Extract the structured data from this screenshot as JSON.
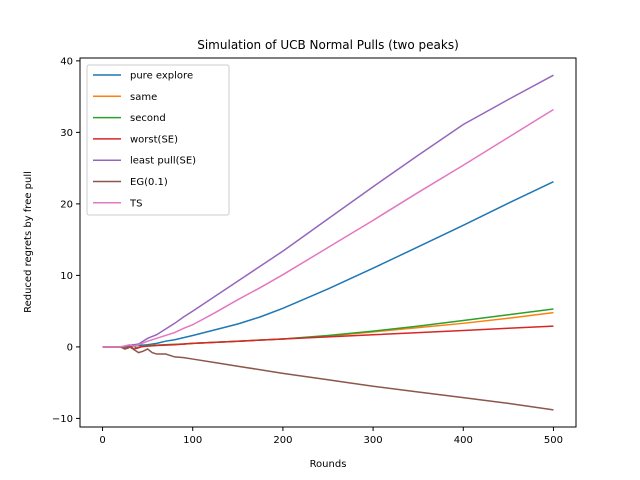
{
  "chart_data": {
    "type": "line",
    "title": "Simulation of UCB Normal Pulls (two peaks)",
    "xlabel": "Rounds",
    "ylabel": "Reduced regrets by free pull",
    "xlim": [
      -25,
      525
    ],
    "ylim": [
      -11.2,
      40.4
    ],
    "xticks": [
      0,
      100,
      200,
      300,
      400,
      500
    ],
    "yticks": [
      -10,
      0,
      10,
      20,
      30,
      40
    ],
    "grid": false,
    "legend": "upper-left",
    "series": [
      {
        "name": "pure explore",
        "color": "#1f77b4",
        "points": [
          [
            0,
            0
          ],
          [
            20,
            0
          ],
          [
            30,
            0.1
          ],
          [
            40,
            0.2
          ],
          [
            50,
            0.3
          ],
          [
            60,
            0.5
          ],
          [
            70,
            0.8
          ],
          [
            80,
            1.0
          ],
          [
            90,
            1.3
          ],
          [
            100,
            1.6
          ],
          [
            125,
            2.4
          ],
          [
            150,
            3.2
          ],
          [
            175,
            4.2
          ],
          [
            200,
            5.4
          ],
          [
            250,
            8.1
          ],
          [
            300,
            11.0
          ],
          [
            350,
            14.0
          ],
          [
            400,
            17.0
          ],
          [
            450,
            20.1
          ],
          [
            500,
            23.1
          ]
        ]
      },
      {
        "name": "same",
        "color": "#ff7f0e",
        "points": [
          [
            0,
            0
          ],
          [
            20,
            0
          ],
          [
            28,
            -0.2
          ],
          [
            33,
            0.3
          ],
          [
            38,
            -0.2
          ],
          [
            45,
            0.1
          ],
          [
            55,
            0.2
          ],
          [
            70,
            0.3
          ],
          [
            90,
            0.4
          ],
          [
            100,
            0.5
          ],
          [
            150,
            0.8
          ],
          [
            200,
            1.1
          ],
          [
            250,
            1.5
          ],
          [
            300,
            2.1
          ],
          [
            350,
            2.7
          ],
          [
            400,
            3.3
          ],
          [
            450,
            4.0
          ],
          [
            500,
            4.8
          ]
        ]
      },
      {
        "name": "second",
        "color": "#2ca02c",
        "points": [
          [
            0,
            0
          ],
          [
            20,
            0
          ],
          [
            28,
            -0.2
          ],
          [
            33,
            0.3
          ],
          [
            38,
            -0.2
          ],
          [
            45,
            0.1
          ],
          [
            55,
            0.2
          ],
          [
            70,
            0.3
          ],
          [
            90,
            0.4
          ],
          [
            100,
            0.5
          ],
          [
            150,
            0.8
          ],
          [
            200,
            1.1
          ],
          [
            250,
            1.6
          ],
          [
            300,
            2.2
          ],
          [
            350,
            2.9
          ],
          [
            400,
            3.7
          ],
          [
            450,
            4.5
          ],
          [
            500,
            5.3
          ]
        ]
      },
      {
        "name": "worst(SE)",
        "color": "#d62728",
        "points": [
          [
            0,
            0
          ],
          [
            20,
            0
          ],
          [
            25,
            -0.3
          ],
          [
            30,
            0.2
          ],
          [
            35,
            -0.3
          ],
          [
            42,
            0
          ],
          [
            50,
            0.1
          ],
          [
            60,
            0.2
          ],
          [
            80,
            0.3
          ],
          [
            100,
            0.5
          ],
          [
            150,
            0.8
          ],
          [
            200,
            1.1
          ],
          [
            250,
            1.4
          ],
          [
            300,
            1.7
          ],
          [
            350,
            2.0
          ],
          [
            400,
            2.3
          ],
          [
            450,
            2.6
          ],
          [
            500,
            2.9
          ]
        ]
      },
      {
        "name": "least pull(SE)",
        "color": "#9467bd",
        "points": [
          [
            0,
            0
          ],
          [
            20,
            0
          ],
          [
            30,
            0.2
          ],
          [
            40,
            0.4
          ],
          [
            50,
            1.2
          ],
          [
            60,
            1.7
          ],
          [
            70,
            2.5
          ],
          [
            80,
            3.3
          ],
          [
            90,
            4.2
          ],
          [
            100,
            5.0
          ],
          [
            125,
            7.1
          ],
          [
            150,
            9.2
          ],
          [
            175,
            11.3
          ],
          [
            200,
            13.4
          ],
          [
            250,
            17.9
          ],
          [
            300,
            22.4
          ],
          [
            350,
            26.8
          ],
          [
            400,
            31.1
          ],
          [
            450,
            34.6
          ],
          [
            500,
            38.0
          ]
        ]
      },
      {
        "name": "EG(0.1)",
        "color": "#8c564b",
        "points": [
          [
            0,
            0
          ],
          [
            20,
            0
          ],
          [
            25,
            -0.3
          ],
          [
            30,
            0
          ],
          [
            35,
            -0.4
          ],
          [
            40,
            -0.8
          ],
          [
            45,
            -0.6
          ],
          [
            50,
            -0.3
          ],
          [
            55,
            -0.8
          ],
          [
            60,
            -1.0
          ],
          [
            70,
            -1.0
          ],
          [
            80,
            -1.4
          ],
          [
            90,
            -1.5
          ],
          [
            100,
            -1.7
          ],
          [
            125,
            -2.2
          ],
          [
            150,
            -2.7
          ],
          [
            200,
            -3.7
          ],
          [
            250,
            -4.6
          ],
          [
            300,
            -5.5
          ],
          [
            350,
            -6.3
          ],
          [
            400,
            -7.1
          ],
          [
            450,
            -7.9
          ],
          [
            500,
            -8.8
          ]
        ]
      },
      {
        "name": "TS",
        "color": "#e377c2",
        "points": [
          [
            0,
            0
          ],
          [
            20,
            0
          ],
          [
            30,
            0.3
          ],
          [
            35,
            0.1
          ],
          [
            40,
            0.3
          ],
          [
            50,
            0.8
          ],
          [
            60,
            1.2
          ],
          [
            70,
            1.6
          ],
          [
            80,
            2.0
          ],
          [
            90,
            2.6
          ],
          [
            100,
            3.1
          ],
          [
            125,
            4.8
          ],
          [
            150,
            6.6
          ],
          [
            175,
            8.3
          ],
          [
            200,
            10.1
          ],
          [
            250,
            13.9
          ],
          [
            300,
            17.7
          ],
          [
            350,
            21.6
          ],
          [
            400,
            25.4
          ],
          [
            450,
            29.3
          ],
          [
            500,
            33.2
          ]
        ]
      }
    ]
  }
}
